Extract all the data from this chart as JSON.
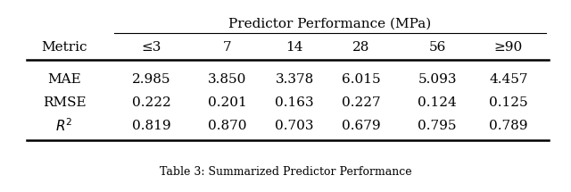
{
  "title": "Predictor Performance (MPa)",
  "caption": "Table 3: Summarized Predictor Performance",
  "col_header": [
    "Metric",
    "≤3",
    "7",
    "14",
    "28",
    "56",
    "≥90"
  ],
  "rows": [
    [
      "MAE",
      "2.985",
      "3.850",
      "3.378",
      "6.015",
      "5.093",
      "4.457"
    ],
    [
      "RMSE",
      "0.222",
      "0.201",
      "0.163",
      "0.227",
      "0.124",
      "0.125"
    ],
    [
      "$R^2$",
      "0.819",
      "0.870",
      "0.703",
      "0.679",
      "0.795",
      "0.789"
    ]
  ],
  "figsize": [
    6.4,
    2.15
  ],
  "dpi": 100,
  "fontsize": 11,
  "title_fontsize": 11,
  "caption_fontsize": 9,
  "background": "#ffffff"
}
